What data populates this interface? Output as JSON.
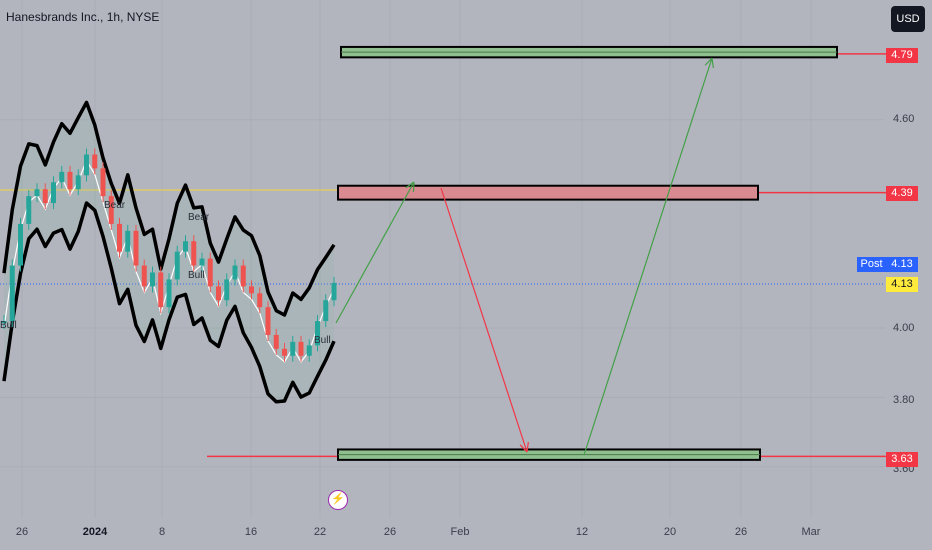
{
  "header": {
    "title": "Hanesbrands Inc., 1h, NYSE",
    "currency": "USD"
  },
  "price_axis": {
    "ticks": [
      "4.60",
      "4.00",
      "3.80",
      "3.60"
    ]
  },
  "price_labels": [
    {
      "value": "4.79",
      "color": "#f23645"
    },
    {
      "value": "4.39",
      "color": "#f23645"
    },
    {
      "value": "4.13",
      "color": "#2962ff"
    },
    {
      "value": "4.13",
      "color": "#ffeb3b"
    },
    {
      "value": "3.63",
      "color": "#f23645"
    }
  ],
  "post_label": "Post",
  "time_axis": {
    "ticks": [
      "26",
      "2024",
      "8",
      "16",
      "22",
      "26",
      "Feb",
      "12",
      "20",
      "26",
      "Mar"
    ]
  },
  "indicator_labels": [
    "Bear",
    "Bear",
    "Bull",
    "Bull",
    "Bull"
  ],
  "chart_data": {
    "type": "line",
    "title": "Hanesbrands Inc., 1h, NYSE",
    "xlabel": "",
    "ylabel": "",
    "currency": "USD",
    "ylim": [
      3.55,
      4.86
    ],
    "x_ticks": [
      "26",
      "2024",
      "8",
      "16",
      "22",
      "26",
      "Feb",
      "12",
      "20",
      "26",
      "Mar"
    ],
    "y_ticks": [
      4.6,
      4.0,
      3.8,
      3.6
    ],
    "series": [
      {
        "values": [
          4.02,
          4.18,
          4.3,
          4.38,
          4.4,
          4.36,
          4.42,
          4.45,
          4.4,
          4.44,
          4.5,
          4.46,
          4.38,
          4.3,
          4.22,
          4.28,
          4.18,
          4.12,
          4.16,
          4.06,
          4.14,
          4.22,
          4.25,
          4.18,
          4.2,
          4.12,
          4.08,
          4.14,
          4.18,
          4.12,
          4.1,
          4.06,
          3.98,
          3.94,
          3.92,
          3.96,
          3.92,
          3.95,
          4.02,
          4.08,
          4.13
        ]
      }
    ],
    "zones": [
      {
        "price_range": [
          4.78,
          4.81
        ],
        "color": "#8fbe8f"
      },
      {
        "price_range": [
          4.37,
          4.41
        ],
        "color": "#d98a91"
      },
      {
        "price_range": [
          3.62,
          3.65
        ],
        "color": "#8fbe8f"
      }
    ],
    "horizontal_lines": [
      4.79,
      4.39,
      3.63
    ],
    "projected_path": [
      4.13,
      4.39,
      3.63,
      4.79
    ],
    "last_price": 4.13,
    "post_price": 4.13
  }
}
